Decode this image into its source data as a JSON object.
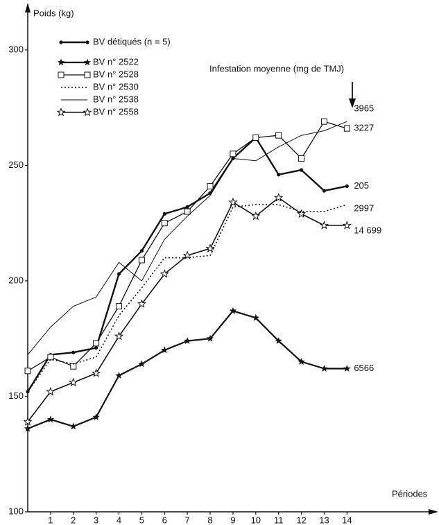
{
  "chart_data": {
    "type": "line",
    "y_label": "Poids (kg)",
    "x_label": "Périodes",
    "annotation": "Infestation moyenne (mg de TMJ)",
    "x": [
      0,
      1,
      2,
      3,
      4,
      5,
      6,
      7,
      8,
      9,
      10,
      11,
      12,
      13,
      14
    ],
    "xlim": [
      0,
      17.7
    ],
    "xticks": [
      1,
      2,
      3,
      4,
      5,
      6,
      7,
      8,
      9,
      10,
      11,
      12,
      13,
      14
    ],
    "ylim": [
      100,
      318
    ],
    "yticks": [
      100,
      150,
      200,
      250,
      300
    ],
    "color": "#111111",
    "series": [
      {
        "name": "BV détiqués (n = 5)",
        "marker": "dot",
        "dash": "solid",
        "width": 2.4,
        "end_label": "205",
        "values": [
          152,
          168,
          169,
          171,
          203,
          213,
          229,
          232,
          238,
          253,
          262,
          246,
          248,
          239,
          241
        ]
      },
      {
        "name": "BV n° 2522",
        "marker": "star",
        "dash": "solid",
        "width": 2.2,
        "end_label": "6566",
        "values": [
          136,
          140,
          137,
          141,
          159,
          164,
          170,
          174,
          175,
          187,
          184,
          174,
          165,
          162,
          162
        ]
      },
      {
        "name": "BV n° 2528",
        "marker": "square",
        "dash": "solid",
        "width": 1.3,
        "end_label": "3227",
        "values": [
          161,
          167,
          163,
          173,
          189,
          209,
          225,
          230,
          241,
          255,
          262,
          263,
          253,
          269,
          266
        ]
      },
      {
        "name": "BV n° 2530",
        "marker": "none",
        "dash": "dotted",
        "width": 1.6,
        "end_label": "2997",
        "values": [
          152,
          166,
          164,
          167,
          185,
          197,
          210,
          210,
          211,
          232,
          233,
          233,
          230,
          230,
          233
        ]
      },
      {
        "name": "BV n° 2538",
        "marker": "none",
        "dash": "solid",
        "width": 1.0,
        "end_label": "3965",
        "values": [
          168,
          180,
          189,
          193,
          208,
          200,
          218,
          228,
          237,
          253,
          252,
          258,
          263,
          265,
          269
        ]
      },
      {
        "name": "BV n° 2558",
        "marker": "star-open",
        "dash": "solid",
        "width": 1.6,
        "end_label": "14 699",
        "values": [
          139,
          152,
          156,
          160,
          176,
          190,
          203,
          211,
          214,
          234,
          228,
          236,
          229,
          224,
          224
        ]
      }
    ]
  }
}
